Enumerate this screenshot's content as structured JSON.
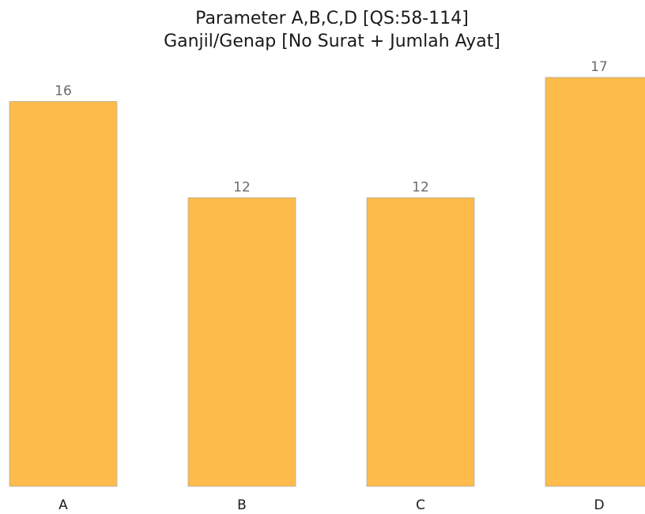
{
  "chart_data": {
    "type": "bar",
    "title_lines": [
      "Parameter A,B,C,D [QS:58-114]",
      "Ganjil/Genap [No Surat + Jumlah Ayat]"
    ],
    "categories": [
      "A",
      "B",
      "C",
      "D"
    ],
    "values": [
      16,
      12,
      12,
      17
    ],
    "data_labels": [
      "16",
      "12",
      "12",
      "17"
    ],
    "ylim": [
      0,
      17
    ],
    "grid": false,
    "bar_color": "#fcbb4a",
    "bar_edge_color": "#b0b0b0"
  }
}
